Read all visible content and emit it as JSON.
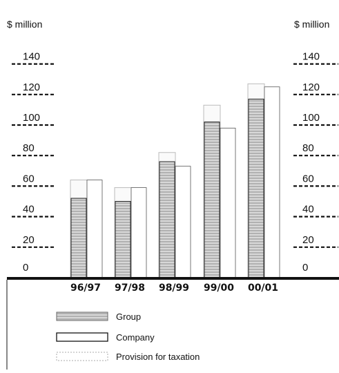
{
  "chart_data": {
    "type": "bar",
    "unit_left": "$ million",
    "unit_right": "$ million",
    "ylim": [
      0,
      150
    ],
    "yticks": [
      "0",
      "20",
      "40",
      "60",
      "80",
      "100",
      "120",
      "140"
    ],
    "categories": [
      "96/97",
      "97/98",
      "98/99",
      "99/00",
      "00/01"
    ],
    "series": [
      {
        "name": "Group",
        "values": [
          52,
          50,
          76,
          102,
          117
        ]
      },
      {
        "name": "Company",
        "values": [
          64,
          59,
          73,
          98,
          125
        ]
      },
      {
        "name": "Provision for taxation",
        "values": [
          64,
          59,
          82,
          113,
          127
        ]
      }
    ],
    "legend_position": "bottom",
    "grid": false,
    "colors": {
      "group_fill": "#c9c9c9",
      "company_fill": "#ffffff",
      "provision_stroke": "#bbbbbb",
      "axis": "#111111"
    }
  }
}
